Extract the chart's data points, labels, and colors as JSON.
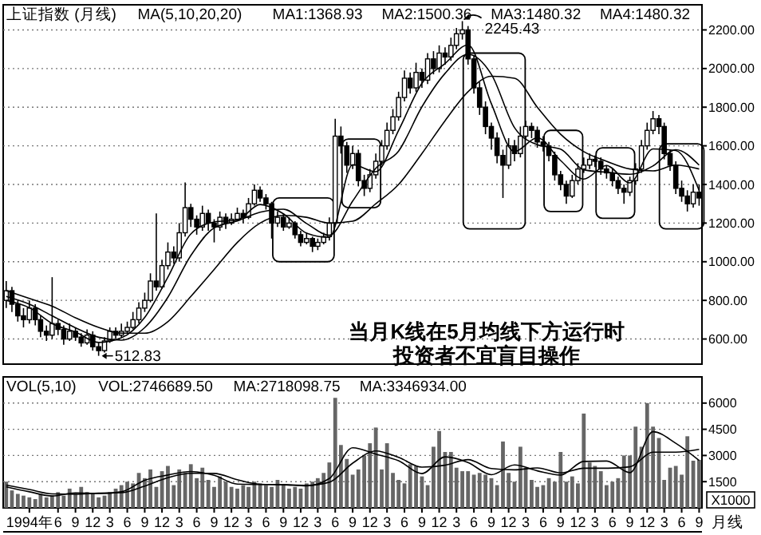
{
  "chart_data": [
    {
      "type": "candlestick",
      "title": "上证指数 (月线)",
      "grid": "y",
      "tick_labels": "y",
      "xlim": [
        "1993-08-16",
        "2003-09-16"
      ],
      "x": [
        "1993-09",
        "1993-10",
        "1993-11",
        "1993-12",
        "1994-01",
        "1994-02",
        "1994-03",
        "1994-04",
        "1994-05",
        "1994-06",
        "1994-07",
        "1994-08",
        "1994-09",
        "1994-10",
        "1994-11",
        "1994-12",
        "1995-01",
        "1995-02",
        "1995-03",
        "1995-04",
        "1995-05",
        "1995-06",
        "1995-07",
        "1995-08",
        "1995-09",
        "1995-10",
        "1995-11",
        "1995-12",
        "1996-01",
        "1996-02",
        "1996-03",
        "1996-04",
        "1996-05",
        "1996-06",
        "1996-07",
        "1996-08",
        "1996-09",
        "1996-10",
        "1996-11",
        "1996-12",
        "1997-01",
        "1997-02",
        "1997-03",
        "1997-04",
        "1997-05",
        "1997-06",
        "1997-07",
        "1997-08",
        "1997-09",
        "1997-10",
        "1997-11",
        "1997-12",
        "1998-01",
        "1998-02",
        "1998-03",
        "1998-04",
        "1998-05",
        "1998-06",
        "1998-07",
        "1998-08",
        "1998-09",
        "1998-10",
        "1998-11",
        "1998-12",
        "1999-01",
        "1999-02",
        "1999-03",
        "1999-04",
        "1999-05",
        "1999-06",
        "1999-07",
        "1999-08",
        "1999-09",
        "1999-10",
        "1999-11",
        "1999-12",
        "2000-01",
        "2000-02",
        "2000-03",
        "2000-04",
        "2000-05",
        "2000-06",
        "2000-07",
        "2000-08",
        "2000-09",
        "2000-10",
        "2000-11",
        "2000-12",
        "2001-01",
        "2001-02",
        "2001-03",
        "2001-04",
        "2001-05",
        "2001-06",
        "2001-07",
        "2001-08",
        "2001-09",
        "2001-10",
        "2001-11",
        "2001-12",
        "2002-01",
        "2002-02",
        "2002-03",
        "2002-04",
        "2002-05",
        "2002-06",
        "2002-07",
        "2002-08",
        "2002-09",
        "2002-10",
        "2002-11",
        "2002-12",
        "2003-01",
        "2003-02",
        "2003-03",
        "2003-04",
        "2003-05",
        "2003-06",
        "2003-07",
        "2003-08",
        "2003-09"
      ],
      "ohlc": [
        [
          800,
          900,
          760,
          850
        ],
        [
          850,
          870,
          740,
          780
        ],
        [
          780,
          800,
          690,
          720
        ],
        [
          720,
          760,
          660,
          700
        ],
        [
          700,
          800,
          680,
          760
        ],
        [
          760,
          780,
          670,
          700
        ],
        [
          700,
          720,
          610,
          640
        ],
        [
          640,
          670,
          590,
          620
        ],
        [
          620,
          920,
          600,
          680
        ],
        [
          680,
          700,
          620,
          650
        ],
        [
          650,
          670,
          570,
          600
        ],
        [
          600,
          680,
          590,
          640
        ],
        [
          640,
          660,
          590,
          610
        ],
        [
          610,
          630,
          560,
          580
        ],
        [
          580,
          650,
          570,
          620
        ],
        [
          620,
          640,
          540,
          560
        ],
        [
          560,
          580,
          512.83,
          540
        ],
        [
          540,
          610,
          530,
          590
        ],
        [
          590,
          660,
          580,
          640
        ],
        [
          640,
          660,
          600,
          620
        ],
        [
          620,
          680,
          610,
          640
        ],
        [
          640,
          690,
          630,
          660
        ],
        [
          660,
          740,
          650,
          700
        ],
        [
          700,
          790,
          680,
          760
        ],
        [
          760,
          840,
          740,
          800
        ],
        [
          800,
          940,
          790,
          900
        ],
        [
          900,
          1250,
          850,
          870
        ],
        [
          870,
          1010,
          860,
          980
        ],
        [
          980,
          1100,
          960,
          1050
        ],
        [
          1050,
          1080,
          990,
          1020
        ],
        [
          1020,
          1200,
          1000,
          1150
        ],
        [
          1150,
          1410,
          1130,
          1280
        ],
        [
          1280,
          1300,
          1180,
          1220
        ],
        [
          1220,
          1240,
          1140,
          1180
        ],
        [
          1180,
          1290,
          1160,
          1250
        ],
        [
          1250,
          1270,
          1160,
          1200
        ],
        [
          1200,
          1220,
          1100,
          1180
        ],
        [
          1180,
          1260,
          1160,
          1230
        ],
        [
          1230,
          1250,
          1170,
          1200
        ],
        [
          1200,
          1250,
          1190,
          1220
        ],
        [
          1220,
          1280,
          1210,
          1250
        ],
        [
          1250,
          1270,
          1200,
          1230
        ],
        [
          1230,
          1330,
          1220,
          1300
        ],
        [
          1300,
          1400,
          1290,
          1370
        ],
        [
          1370,
          1390,
          1310,
          1330
        ],
        [
          1330,
          1350,
          1270,
          1300
        ],
        [
          1300,
          1310,
          1120,
          1200
        ],
        [
          1200,
          1260,
          1180,
          1230
        ],
        [
          1230,
          1250,
          1160,
          1180
        ],
        [
          1180,
          1230,
          1170,
          1200
        ],
        [
          1200,
          1210,
          1120,
          1140
        ],
        [
          1140,
          1160,
          1080,
          1100
        ],
        [
          1100,
          1150,
          1090,
          1120
        ],
        [
          1120,
          1130,
          1050,
          1080
        ],
        [
          1080,
          1120,
          1060,
          1100
        ],
        [
          1100,
          1150,
          1090,
          1130
        ],
        [
          1130,
          1230,
          1110,
          1200
        ],
        [
          1200,
          1740,
          1190,
          1650
        ],
        [
          1650,
          1700,
          1560,
          1600
        ],
        [
          1600,
          1620,
          1460,
          1500
        ],
        [
          1500,
          1600,
          1480,
          1560
        ],
        [
          1560,
          1580,
          1390,
          1420
        ],
        [
          1420,
          1450,
          1340,
          1380
        ],
        [
          1380,
          1480,
          1360,
          1450
        ],
        [
          1450,
          1560,
          1430,
          1520
        ],
        [
          1520,
          1630,
          1500,
          1600
        ],
        [
          1600,
          1720,
          1580,
          1680
        ],
        [
          1680,
          1790,
          1660,
          1750
        ],
        [
          1750,
          1880,
          1730,
          1850
        ],
        [
          1850,
          1990,
          1830,
          1950
        ],
        [
          1950,
          1980,
          1870,
          1900
        ],
        [
          1900,
          2030,
          1880,
          1980
        ],
        [
          1980,
          2000,
          1900,
          1940
        ],
        [
          1940,
          2080,
          1920,
          2050
        ],
        [
          2050,
          2090,
          1970,
          2000
        ],
        [
          2000,
          2120,
          1980,
          2080
        ],
        [
          2080,
          2110,
          2020,
          2060
        ],
        [
          2060,
          2160,
          2040,
          2120
        ],
        [
          2120,
          2210,
          2100,
          2180
        ],
        [
          2180,
          2245.43,
          2150,
          2200
        ],
        [
          2200,
          2220,
          2020,
          2050
        ],
        [
          2050,
          2070,
          1870,
          1900
        ],
        [
          1900,
          1930,
          1760,
          1800
        ],
        [
          1800,
          1830,
          1660,
          1700
        ],
        [
          1700,
          1720,
          1580,
          1640
        ],
        [
          1640,
          1670,
          1510,
          1550
        ],
        [
          1550,
          1580,
          1330,
          1500
        ],
        [
          1500,
          1640,
          1480,
          1600
        ],
        [
          1600,
          1630,
          1520,
          1560
        ],
        [
          1560,
          1700,
          1540,
          1650
        ],
        [
          1650,
          1730,
          1630,
          1700
        ],
        [
          1700,
          1720,
          1640,
          1680
        ],
        [
          1680,
          1700,
          1590,
          1620
        ],
        [
          1620,
          1650,
          1570,
          1600
        ],
        [
          1600,
          1620,
          1520,
          1550
        ],
        [
          1550,
          1570,
          1420,
          1450
        ],
        [
          1450,
          1470,
          1370,
          1400
        ],
        [
          1400,
          1420,
          1300,
          1340
        ],
        [
          1340,
          1450,
          1330,
          1420
        ],
        [
          1420,
          1510,
          1400,
          1480
        ],
        [
          1480,
          1540,
          1460,
          1500
        ],
        [
          1500,
          1560,
          1480,
          1530
        ],
        [
          1530,
          1550,
          1490,
          1520
        ],
        [
          1520,
          1540,
          1450,
          1480
        ],
        [
          1480,
          1500,
          1430,
          1460
        ],
        [
          1460,
          1480,
          1390,
          1420
        ],
        [
          1420,
          1440,
          1350,
          1380
        ],
        [
          1380,
          1400,
          1300,
          1360
        ],
        [
          1360,
          1440,
          1340,
          1420
        ],
        [
          1420,
          1510,
          1400,
          1480
        ],
        [
          1480,
          1630,
          1460,
          1600
        ],
        [
          1600,
          1720,
          1580,
          1680
        ],
        [
          1680,
          1780,
          1660,
          1740
        ],
        [
          1740,
          1760,
          1660,
          1700
        ],
        [
          1700,
          1720,
          1530,
          1560
        ],
        [
          1560,
          1580,
          1470,
          1500
        ],
        [
          1500,
          1520,
          1350,
          1380
        ],
        [
          1380,
          1420,
          1310,
          1340
        ],
        [
          1340,
          1370,
          1260,
          1300
        ],
        [
          1300,
          1400,
          1280,
          1360
        ],
        [
          1360,
          1400,
          1290,
          1330
        ]
      ],
      "series": [
        {
          "type": "line",
          "color": "#000000",
          "x": [
            "1993-09",
            "1994-01",
            "1994-05",
            "1994-09",
            "1995-01",
            "1995-05",
            "1995-09",
            "1996-01",
            "1996-05",
            "1996-09",
            "1997-01",
            "1997-05",
            "1997-09",
            "1998-01",
            "1998-05",
            "1998-09",
            "1999-01",
            "1999-05",
            "1999-09",
            "2000-01",
            "2000-05",
            "2000-09",
            "2001-01",
            "2001-05",
            "2001-09",
            "2002-01",
            "2002-05",
            "2002-09",
            "2003-01",
            "2003-05",
            "2003-09"
          ],
          "values": [
            800,
            762,
            680,
            636,
            582,
            606,
            712,
            920,
            1144,
            1206,
            1216,
            1296,
            1248,
            1148,
            1126,
            1502,
            1466,
            1680,
            1924,
            2026,
            2122,
            1818,
            1570,
            1642,
            1524,
            1428,
            1498,
            1408,
            1584,
            1576,
            1369
          ]
        },
        {
          "type": "line",
          "color": "#000000",
          "x": [
            "1993-09",
            "1994-01",
            "1994-05",
            "1994-09",
            "1995-01",
            "1995-05",
            "1995-09",
            "1996-01",
            "1996-05",
            "1996-09",
            "1997-01",
            "1997-05",
            "1997-09",
            "1998-01",
            "1998-05",
            "1998-09",
            "1999-01",
            "1999-05",
            "1999-09",
            "2000-01",
            "2000-05",
            "2000-09",
            "2001-01",
            "2001-05",
            "2001-09",
            "2002-01",
            "2002-05",
            "2002-09",
            "2003-01",
            "2003-05",
            "2003-09"
          ],
          "values": [
            820,
            780,
            720,
            658,
            609,
            594,
            659,
            816,
            1032,
            1175,
            1211,
            1256,
            1272,
            1198,
            1137,
            1314,
            1484,
            1573,
            1802,
            1975,
            2074,
            1970,
            1694,
            1606,
            1583,
            1476,
            1463,
            1453,
            1496,
            1580,
            1500
          ]
        },
        {
          "type": "line",
          "color": "#000000",
          "x": [
            "1993-09",
            "1994-01",
            "1994-05",
            "1994-09",
            "1995-01",
            "1995-05",
            "1995-09",
            "1996-01",
            "1996-05",
            "1996-09",
            "1997-01",
            "1997-05",
            "1997-09",
            "1998-01",
            "1998-05",
            "1998-09",
            "1999-01",
            "1999-05",
            "1999-09",
            "2000-01",
            "2000-05",
            "2000-09",
            "2001-01",
            "2001-05",
            "2001-09",
            "2002-01",
            "2002-05",
            "2002-09",
            "2003-01",
            "2003-05",
            "2003-09"
          ],
          "values": [
            850,
            810,
            770,
            710,
            660,
            630,
            630,
            690,
            820,
            960,
            1100,
            1200,
            1240,
            1230,
            1200,
            1210,
            1300,
            1400,
            1560,
            1730,
            1880,
            1960,
            1950,
            1800,
            1660,
            1570,
            1520,
            1480,
            1470,
            1500,
            1480
          ]
        }
      ],
      "ylim": [
        470,
        2330
      ],
      "yticks": [
        {
          "value": 600,
          "label": "600.00"
        },
        {
          "value": 800,
          "label": "800.00"
        },
        {
          "value": 1000,
          "label": "1000.00"
        },
        {
          "value": 1200,
          "label": "1200.00"
        },
        {
          "value": 1400,
          "label": "1400.00"
        },
        {
          "value": 1600,
          "label": "1600.00"
        },
        {
          "value": 1800,
          "label": "1800.00"
        },
        {
          "value": 2000,
          "label": "2000.00"
        },
        {
          "value": 2200,
          "label": "2200.00"
        }
      ],
      "annotations": [
        "MA(5,10,20,20)",
        "MA1:1368.93",
        "MA2:1500.36",
        "MA3:1480.32",
        "MA4:1480.32",
        "2245.43",
        "512.83",
        "当月K线在5月均线下方运行时",
        "投资者不宜盲目操作"
      ]
    },
    {
      "type": "bar",
      "grid": "y",
      "ylabel": "X1000",
      "xlabel": "月线",
      "annotations": [
        "VOL(5,10)",
        "VOL:2746689.50",
        "MA:2718098.75",
        "MA:3346934.00"
      ],
      "xlim": [
        "1993-08-16",
        "2003-09-16"
      ],
      "x": [
        "1993-09",
        "1993-10",
        "1993-11",
        "1993-12",
        "1994-01",
        "1994-02",
        "1994-03",
        "1994-04",
        "1994-05",
        "1994-06",
        "1994-07",
        "1994-08",
        "1994-09",
        "1994-10",
        "1994-11",
        "1994-12",
        "1995-01",
        "1995-02",
        "1995-03",
        "1995-04",
        "1995-05",
        "1995-06",
        "1995-07",
        "1995-08",
        "1995-09",
        "1995-10",
        "1995-11",
        "1995-12",
        "1996-01",
        "1996-02",
        "1996-03",
        "1996-04",
        "1996-05",
        "1996-06",
        "1996-07",
        "1996-08",
        "1996-09",
        "1996-10",
        "1996-11",
        "1996-12",
        "1997-01",
        "1997-02",
        "1997-03",
        "1997-04",
        "1997-05",
        "1997-06",
        "1997-07",
        "1997-08",
        "1997-09",
        "1997-10",
        "1997-11",
        "1997-12",
        "1998-01",
        "1998-02",
        "1998-03",
        "1998-04",
        "1998-05",
        "1998-06",
        "1998-07",
        "1998-08",
        "1998-09",
        "1998-10",
        "1998-11",
        "1998-12",
        "1999-01",
        "1999-02",
        "1999-03",
        "1999-04",
        "1999-05",
        "1999-06",
        "1999-07",
        "1999-08",
        "1999-09",
        "1999-10",
        "1999-11",
        "1999-12",
        "2000-01",
        "2000-02",
        "2000-03",
        "2000-04",
        "2000-05",
        "2000-06",
        "2000-07",
        "2000-08",
        "2000-09",
        "2000-10",
        "2000-11",
        "2000-12",
        "2001-01",
        "2001-02",
        "2001-03",
        "2001-04",
        "2001-05",
        "2001-06",
        "2001-07",
        "2001-08",
        "2001-09",
        "2001-10",
        "2001-11",
        "2001-12",
        "2002-01",
        "2002-02",
        "2002-03",
        "2002-04",
        "2002-05",
        "2002-06",
        "2002-07",
        "2002-08",
        "2002-09",
        "2002-10",
        "2002-11",
        "2002-12",
        "2003-01",
        "2003-02",
        "2003-03",
        "2003-04",
        "2003-05",
        "2003-06",
        "2003-07",
        "2003-08",
        "2003-09"
      ],
      "xticks": [
        {
          "value": "1994-01",
          "label": "1994年"
        },
        {
          "value": "1994-06",
          "label": "6"
        },
        {
          "value": "1994-09",
          "label": "9"
        },
        {
          "value": "1994-12",
          "label": "12"
        },
        {
          "value": "1995-03",
          "label": "3"
        },
        {
          "value": "1995-06",
          "label": "6"
        },
        {
          "value": "1995-09",
          "label": "9"
        },
        {
          "value": "1995-12",
          "label": "12"
        },
        {
          "value": "1996-03",
          "label": "3"
        },
        {
          "value": "1996-06",
          "label": "6"
        },
        {
          "value": "1996-09",
          "label": "9"
        },
        {
          "value": "1996-12",
          "label": "12"
        },
        {
          "value": "1997-03",
          "label": "3"
        },
        {
          "value": "1997-06",
          "label": "6"
        },
        {
          "value": "1997-09",
          "label": "9"
        },
        {
          "value": "1997-12",
          "label": "12"
        },
        {
          "value": "1998-03",
          "label": "3"
        },
        {
          "value": "1998-06",
          "label": "6"
        },
        {
          "value": "1998-09",
          "label": "9"
        },
        {
          "value": "1998-12",
          "label": "12"
        },
        {
          "value": "1999-03",
          "label": "3"
        },
        {
          "value": "1999-06",
          "label": "6"
        },
        {
          "value": "1999-09",
          "label": "9"
        },
        {
          "value": "1999-12",
          "label": "12"
        },
        {
          "value": "2000-03",
          "label": "3"
        },
        {
          "value": "2000-06",
          "label": "6"
        },
        {
          "value": "2000-09",
          "label": "9"
        },
        {
          "value": "2000-12",
          "label": "12"
        },
        {
          "value": "2001-03",
          "label": "3"
        },
        {
          "value": "2001-06",
          "label": "6"
        },
        {
          "value": "2001-09",
          "label": "9"
        },
        {
          "value": "2001-12",
          "label": "12"
        },
        {
          "value": "2002-03",
          "label": "3"
        },
        {
          "value": "2002-06",
          "label": "6"
        },
        {
          "value": "2002-09",
          "label": "9"
        },
        {
          "value": "2002-12",
          "label": "12"
        },
        {
          "value": "2003-03",
          "label": "3"
        },
        {
          "value": "2003-06",
          "label": "6"
        },
        {
          "value": "2003-09",
          "label": "9"
        }
      ],
      "series": [
        {
          "color": "#666666",
          "values": [
            1500,
            1000,
            800,
            700,
            600,
            500,
            800,
            600,
            700,
            900,
            700,
            1100,
            800,
            1200,
            900,
            800,
            600,
            700,
            900,
            1100,
            1300,
            1500,
            1400,
            2000,
            1700,
            2200,
            1200,
            2100,
            2400,
            1300,
            2200,
            2000,
            2500,
            1700,
            2300,
            1600,
            1200,
            1800,
            1500,
            1200,
            1100,
            1300,
            1200,
            1500,
            1400,
            1300,
            1200,
            1600,
            1300,
            1100,
            1200,
            1100,
            1400,
            1500,
            1700,
            2000,
            2600,
            6300,
            3600,
            2800,
            1900,
            2200,
            3000,
            3700,
            4600,
            2200,
            3700,
            2000,
            1600,
            1400,
            2500,
            2400,
            1800,
            1300,
            3500,
            4400,
            3200,
            3200,
            2300,
            2100,
            2100,
            1900,
            2000,
            1900,
            1700,
            1300,
            3800,
            2000,
            1500,
            3500,
            2300,
            1600,
            1200,
            1300,
            1700,
            1500,
            3200,
            1500,
            1800,
            1400,
            5400,
            2600,
            2400,
            2100,
            1300,
            1500,
            1700,
            3000,
            3000,
            4650,
            3500,
            6000,
            4650,
            4000,
            1600,
            2300,
            2400,
            1900,
            4100,
            2700,
            2747
          ]
        },
        {
          "type": "line",
          "color": "#000000",
          "x": [
            "1993-09",
            "1994-01",
            "1994-05",
            "1994-09",
            "1995-01",
            "1995-05",
            "1995-09",
            "1996-01",
            "1996-05",
            "1996-09",
            "1997-01",
            "1997-05",
            "1997-09",
            "1998-01",
            "1998-05",
            "1998-09",
            "1999-01",
            "1999-05",
            "1999-09",
            "2000-01",
            "2000-05",
            "2000-09",
            "2001-01",
            "2001-05",
            "2001-09",
            "2002-01",
            "2002-05",
            "2002-09",
            "2003-01",
            "2003-05",
            "2003-09"
          ],
          "values": [
            1200,
            920,
            680,
            860,
            820,
            920,
            1580,
            1880,
            2080,
            1860,
            1360,
            1340,
            1320,
            1260,
            1680,
            3440,
            3080,
            2700,
            1960,
            2920,
            2600,
            1900,
            2460,
            2120,
            1880,
            2660,
            2680,
            2020,
            4360,
            3700,
            2718
          ]
        },
        {
          "type": "line",
          "color": "#000000",
          "x": [
            "1993-09",
            "1994-01",
            "1994-05",
            "1994-09",
            "1995-01",
            "1995-05",
            "1995-09",
            "1996-01",
            "1996-05",
            "1996-09",
            "1997-01",
            "1997-05",
            "1997-09",
            "1998-01",
            "1998-05",
            "1998-09",
            "1999-01",
            "1999-05",
            "1999-09",
            "2000-01",
            "2000-05",
            "2000-09",
            "2001-01",
            "2001-05",
            "2001-09",
            "2002-01",
            "2002-05",
            "2002-09",
            "2003-01",
            "2003-05",
            "2003-09"
          ],
          "values": [
            1300,
            1050,
            800,
            780,
            840,
            870,
            1250,
            1730,
            1980,
            1970,
            1610,
            1350,
            1330,
            1290,
            1470,
            2560,
            3260,
            2890,
            2330,
            2440,
            2760,
            2250,
            2180,
            2290,
            2000,
            2270,
            2270,
            2350,
            3190,
            3190,
            3347
          ]
        }
      ],
      "ylim": [
        0,
        7500
      ],
      "yticks": [
        1500,
        3000,
        4500,
        6000
      ]
    }
  ]
}
